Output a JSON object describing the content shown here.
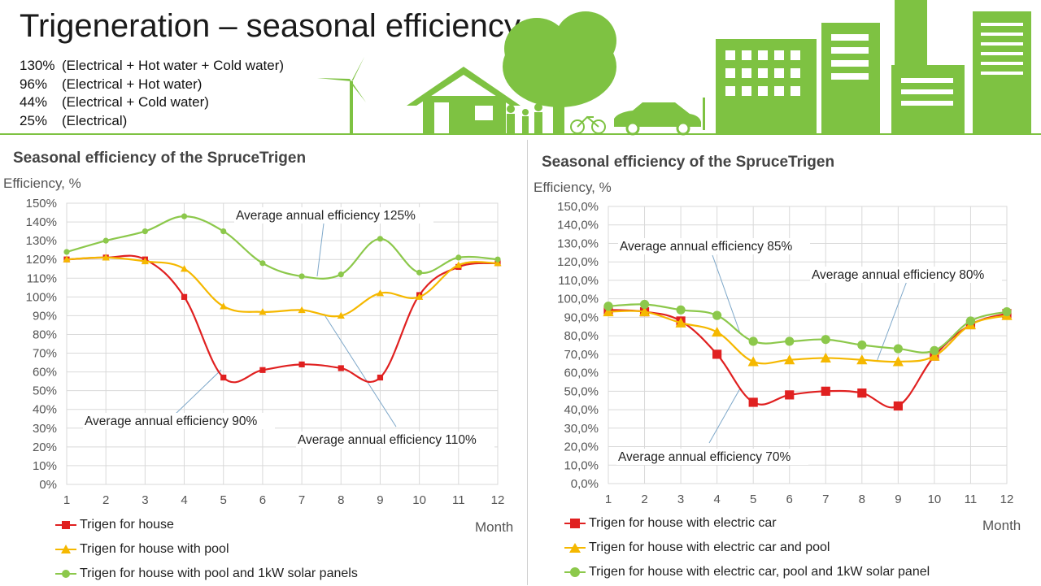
{
  "slide": {
    "title": "Trigeneration – seasonal efficiency",
    "efficiencies": [
      {
        "pct": "130%",
        "desc": "(Electrical + Hot water + Cold water)"
      },
      {
        "pct": "96%",
        "desc": "(Electrical + Hot water)"
      },
      {
        "pct": "44%",
        "desc": "(Electrical + Cold water)"
      },
      {
        "pct": "25%",
        "desc": "(Electrical)"
      }
    ],
    "banner_color": "#7ec242"
  },
  "chart_data": [
    {
      "type": "line",
      "title": "Seasonal efficiency of the SpruceTrigen",
      "ylabel": "Efficiency, %",
      "xlabel": "Month",
      "x": [
        1,
        2,
        3,
        4,
        5,
        6,
        7,
        8,
        9,
        10,
        11,
        12
      ],
      "ylim": [
        0,
        150
      ],
      "yticks": [
        "0%",
        "10%",
        "20%",
        "30%",
        "40%",
        "50%",
        "60%",
        "70%",
        "80%",
        "90%",
        "100%",
        "110%",
        "120%",
        "130%",
        "140%",
        "150%"
      ],
      "grid": true,
      "legend_position": "bottom",
      "series": [
        {
          "name": "Trigen for house",
          "color": "#e02020",
          "marker": "square",
          "values": [
            120,
            121,
            120,
            100,
            57,
            61,
            64,
            62,
            57,
            101,
            116,
            118
          ]
        },
        {
          "name": "Trigen for house with pool",
          "color": "#f5b800",
          "marker": "triangle",
          "values": [
            120,
            121,
            119,
            115,
            95,
            92,
            93,
            90,
            102,
            100,
            117,
            118
          ]
        },
        {
          "name": "Trigen for house with pool and 1kW solar panels",
          "color": "#8cc84b",
          "marker": "circle",
          "values": [
            124,
            130,
            135,
            143,
            135,
            118,
            111,
            112,
            131,
            113,
            121,
            120
          ]
        }
      ],
      "annotations": [
        {
          "text": "Average annual efficiency 125%"
        },
        {
          "text": "Average annual efficiency 90%"
        },
        {
          "text": "Average annual efficiency 110%"
        }
      ]
    },
    {
      "type": "line",
      "title": "Seasonal efficiency of the SpruceTrigen",
      "ylabel": "Efficiency, %",
      "xlabel": "Month",
      "x": [
        1,
        2,
        3,
        4,
        5,
        6,
        7,
        8,
        9,
        10,
        11,
        12
      ],
      "ylim": [
        0,
        150
      ],
      "yticks": [
        "0,0%",
        "10,0%",
        "20,0%",
        "30,0%",
        "40,0%",
        "50,0%",
        "60,0%",
        "70,0%",
        "80,0%",
        "90,0%",
        "100,0%",
        "110,0%",
        "120,0%",
        "130,0%",
        "140,0%",
        "150,0%"
      ],
      "grid": true,
      "legend_position": "bottom",
      "series": [
        {
          "name": "Trigen for house with electric car",
          "color": "#e02020",
          "marker": "square",
          "values": [
            94,
            93,
            88,
            70,
            44,
            48,
            50,
            49,
            42,
            69,
            86,
            92
          ]
        },
        {
          "name": "Trigen for house with electric car and pool",
          "color": "#f5b800",
          "marker": "triangle",
          "values": [
            93,
            93,
            87,
            82,
            66,
            67,
            68,
            67,
            66,
            69,
            86,
            91
          ]
        },
        {
          "name": "Trigen for house with electric car, pool and 1kW solar panel",
          "color": "#8cc84b",
          "marker": "circle",
          "values": [
            96,
            97,
            94,
            91,
            77,
            77,
            78,
            75,
            73,
            72,
            88,
            93
          ]
        }
      ],
      "annotations": [
        {
          "text": "Average annual efficiency 85%"
        },
        {
          "text": "Average annual efficiency 80%"
        },
        {
          "text": "Average annual efficiency 70%"
        }
      ]
    }
  ]
}
